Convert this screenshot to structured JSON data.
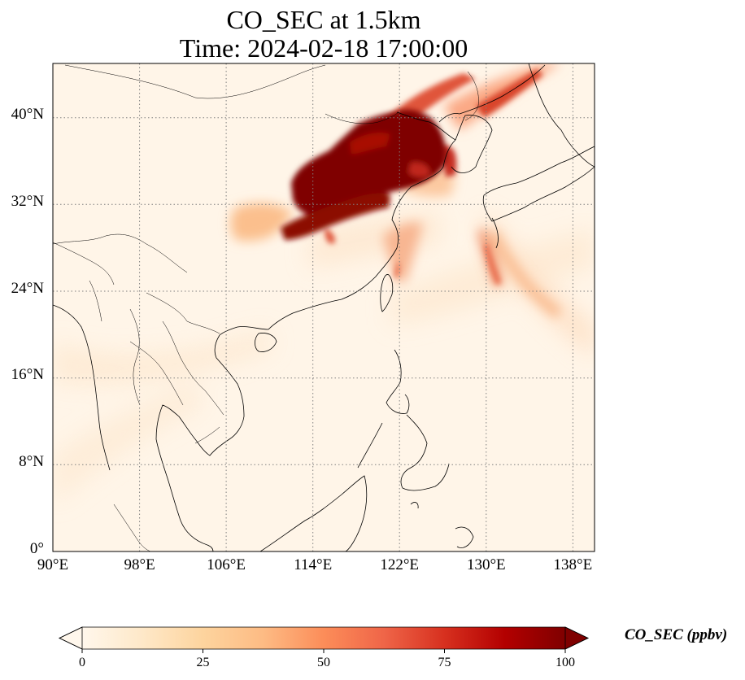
{
  "title_line1": "CO_SEC at 1.5km",
  "title_line2": "Time: 2024-02-18 17:00:00",
  "map": {
    "lon_range": [
      90,
      140
    ],
    "lat_range": [
      0,
      45
    ],
    "lon_ticks": [
      "90°E",
      "98°E",
      "106°E",
      "114°E",
      "122°E",
      "130°E",
      "138°E"
    ],
    "lat_ticks": [
      "0°",
      "8°N",
      "16°N",
      "24°N",
      "32°N",
      "40°N"
    ],
    "gridlines": true,
    "gridline_style": "dotted",
    "coastlines": true,
    "borders": true
  },
  "colorbar": {
    "label": "CO_SEC (ppbv)",
    "colormap": "OrRd",
    "ticks": [
      "0",
      "25",
      "50",
      "75",
      "100"
    ],
    "range": [
      0,
      100
    ],
    "extend": "both",
    "colors": [
      "#fff7ec",
      "#fee8c8",
      "#fdd49e",
      "#fdbb84",
      "#fc8d59",
      "#ef6548",
      "#d7301f",
      "#b30000",
      "#7f0000"
    ]
  }
}
